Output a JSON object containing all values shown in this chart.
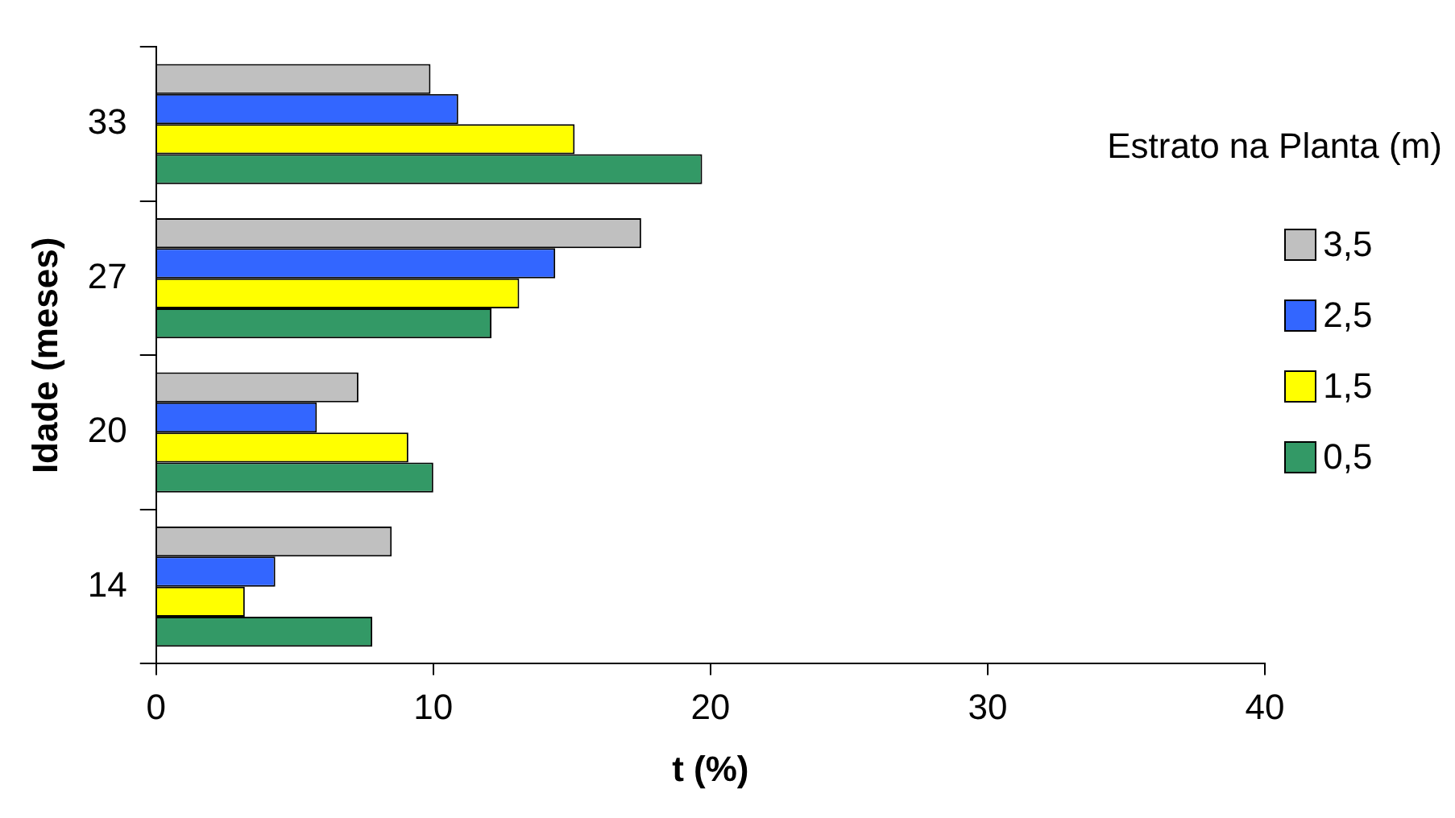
{
  "chart_data": {
    "type": "bar",
    "orientation": "horizontal",
    "xlabel": "t (%)",
    "ylabel": "Idade (meses)",
    "legend_title": "Estrato na Planta (m)",
    "legend": "top right",
    "grid": false,
    "categories": [
      "33",
      "27",
      "20",
      "14"
    ],
    "xlim": [
      0,
      40
    ],
    "xticks": [
      0,
      10,
      20,
      30,
      40
    ],
    "series": [
      {
        "name": "3,5",
        "color": "#c0c0c0",
        "values": [
          9.9,
          17.5,
          7.3,
          8.5
        ]
      },
      {
        "name": "2,5",
        "color": "#3366ff",
        "values": [
          10.9,
          14.4,
          5.8,
          4.3
        ]
      },
      {
        "name": "1,5",
        "color": "#ffff00",
        "values": [
          15.1,
          13.1,
          9.1,
          3.2
        ]
      },
      {
        "name": "0,5",
        "color": "#339966",
        "values": [
          19.7,
          12.1,
          10.0,
          7.8
        ]
      }
    ]
  }
}
